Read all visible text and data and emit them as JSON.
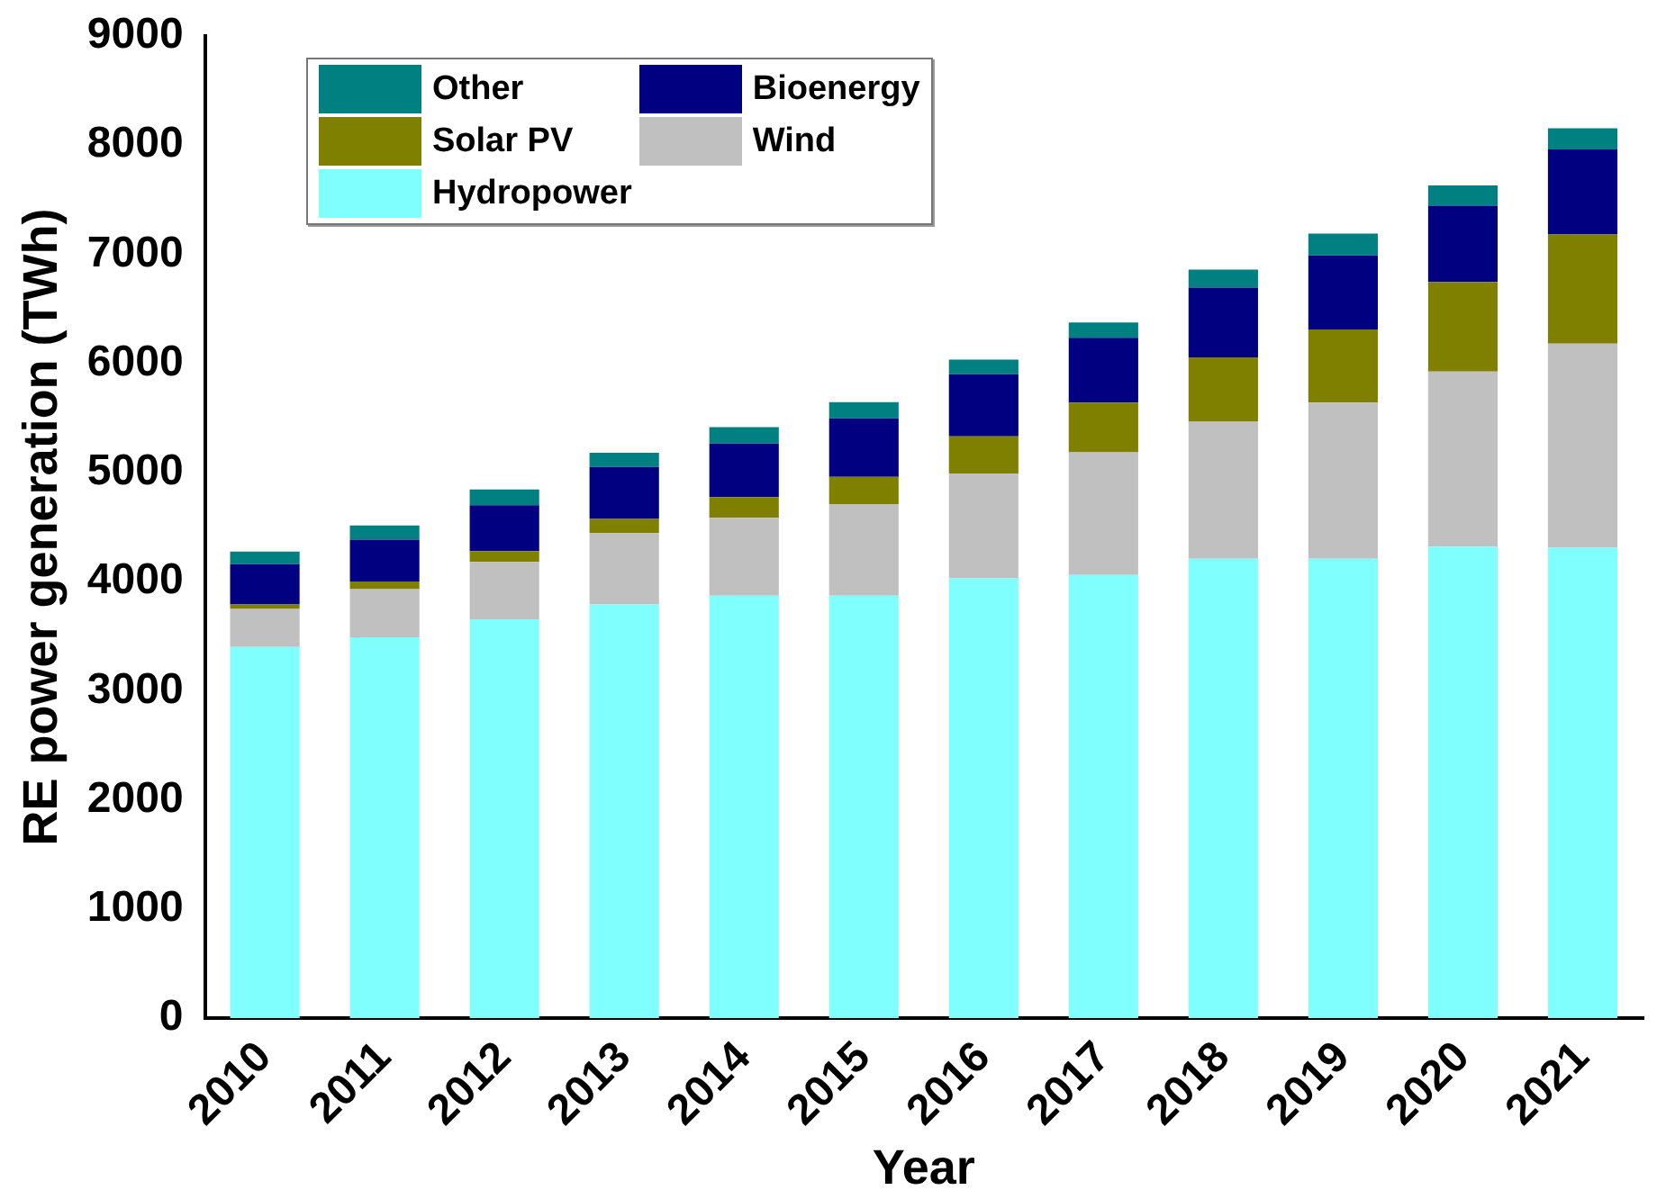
{
  "chart_data": {
    "type": "bar",
    "stacked": true,
    "xlabel": "Year",
    "ylabel": "RE power generation (TWh)",
    "categories": [
      "2010",
      "2011",
      "2012",
      "2013",
      "2014",
      "2015",
      "2016",
      "2017",
      "2018",
      "2019",
      "2020",
      "2021"
    ],
    "ylim": [
      0,
      9000
    ],
    "yticks": [
      0,
      1000,
      2000,
      3000,
      4000,
      5000,
      6000,
      7000,
      8000,
      9000
    ],
    "grid": false,
    "legend": "top left",
    "series": [
      {
        "name": "Hydropower",
        "color": "#80ffff",
        "values": [
          3400,
          3490,
          3655,
          3790,
          3870,
          3870,
          4030,
          4060,
          4210,
          4210,
          4320,
          4310
        ]
      },
      {
        "name": "Wind",
        "color": "#c0c0c0",
        "values": [
          350,
          440,
          525,
          655,
          715,
          840,
          960,
          1125,
          1255,
          1430,
          1605,
          1870
        ]
      },
      {
        "name": "Solar PV",
        "color": "#808000",
        "values": [
          40,
          70,
          100,
          130,
          190,
          250,
          340,
          455,
          590,
          670,
          820,
          1000
        ]
      },
      {
        "name": "Bioenergy",
        "color": "#000080",
        "values": [
          370,
          385,
          420,
          475,
          490,
          535,
          570,
          595,
          640,
          680,
          700,
          780
        ]
      },
      {
        "name": "Other",
        "color": "#008080",
        "values": [
          115,
          130,
          145,
          130,
          150,
          150,
          135,
          140,
          165,
          200,
          185,
          195
        ]
      }
    ]
  }
}
